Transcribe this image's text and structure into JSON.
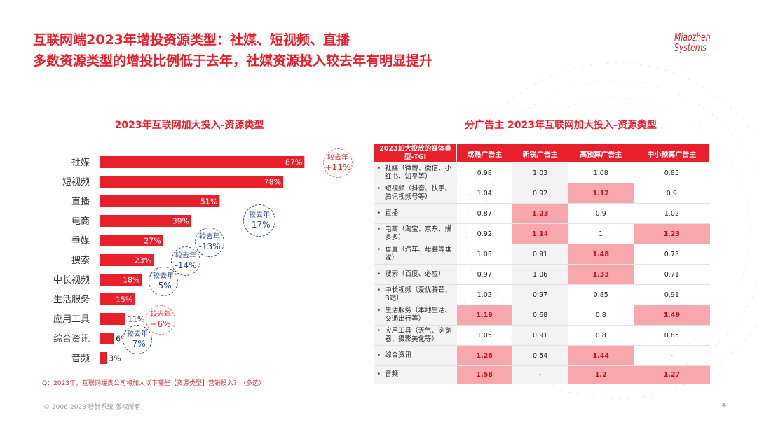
{
  "header": {
    "title_line1": "互联网端2023年增投资源类型：社媒、短视频、直播",
    "title_line2": "多数资源类型的增投比例低于去年，社媒资源投入较去年有明显提升",
    "logo_line1": "Miaozhen",
    "logo_line2": "Systems"
  },
  "colors": {
    "accent": "#e8202c",
    "bar": "#e8202c",
    "highlight": "#f8a8ac",
    "down": "#2f4a8a"
  },
  "chart_data": {
    "type": "bar",
    "orientation": "horizontal",
    "title": "2023年互联网加大投入-资源类型",
    "categories": [
      "社媒",
      "短视频",
      "直播",
      "电商",
      "垂媒",
      "搜索",
      "中长视频",
      "生活服务",
      "应用工具",
      "综合资讯",
      "音频"
    ],
    "values": [
      87,
      78,
      51,
      39,
      27,
      23,
      18,
      15,
      11,
      6,
      3
    ],
    "value_labels": [
      "87%",
      "78%",
      "51%",
      "39%",
      "27%",
      "23%",
      "18%",
      "15%",
      "11%",
      "6%",
      "3%"
    ],
    "annotations": [
      {
        "category": "社媒",
        "label": "较去年",
        "change": "+11%",
        "direction": "up"
      },
      {
        "category": "电商",
        "label": "较去年",
        "change": "-17%",
        "direction": "down"
      },
      {
        "category": "垂媒",
        "label": "较去年",
        "change": "-13%",
        "direction": "down"
      },
      {
        "category": "搜索",
        "label": "较去年",
        "change": "-14%",
        "direction": "down"
      },
      {
        "category": "中长视频",
        "label": "较去年",
        "change": "-5%",
        "direction": "down"
      },
      {
        "category": "应用工具",
        "label": "较去年",
        "change": "+6%",
        "direction": "up"
      },
      {
        "category": "综合资讯",
        "label": "较去年",
        "change": "-7%",
        "direction": "down"
      }
    ],
    "xlim": [
      0,
      100
    ]
  },
  "table": {
    "title": "分广告主  2023年互联网加大投入-资源类型",
    "headers": [
      "2023加大投放的媒体类型-TGI",
      "成熟广告主",
      "新锐广告主",
      "高预算广告主",
      "中小预算广告主"
    ],
    "rows": [
      {
        "name": "社媒（微博、微信、小红书、知乎等）",
        "values": [
          "0.98",
          "1.03",
          "1.08",
          "0.85"
        ],
        "highlight": [
          false,
          false,
          false,
          false
        ]
      },
      {
        "name": "短视频（抖音、快手、腾讯视频号等）",
        "values": [
          "1.04",
          "0.92",
          "1.12",
          "0.9"
        ],
        "highlight": [
          false,
          false,
          true,
          false
        ]
      },
      {
        "name": "直播",
        "values": [
          "0.87",
          "1.23",
          "0.9",
          "1.02"
        ],
        "highlight": [
          false,
          true,
          false,
          false
        ]
      },
      {
        "name": "电商（淘宝、京东、拼多多）",
        "values": [
          "0.92",
          "1.14",
          "1",
          "1.23"
        ],
        "highlight": [
          false,
          true,
          false,
          true
        ]
      },
      {
        "name": "垂直（汽车、母婴等垂媒）",
        "values": [
          "1.05",
          "0.91",
          "1.48",
          "0.73"
        ],
        "highlight": [
          false,
          false,
          true,
          false
        ]
      },
      {
        "name": "搜索（百度、必应）",
        "values": [
          "0.97",
          "1.06",
          "1.33",
          "0.71"
        ],
        "highlight": [
          false,
          false,
          true,
          false
        ]
      },
      {
        "name": "中长视频（爱优腾芒、B站）",
        "values": [
          "1.02",
          "0.97",
          "0.85",
          "0.91"
        ],
        "highlight": [
          false,
          false,
          false,
          false
        ]
      },
      {
        "name": "生活服务（本地生活、交通出行等）",
        "values": [
          "1.19",
          "0.68",
          "0.8",
          "1.49"
        ],
        "highlight": [
          true,
          false,
          false,
          true
        ]
      },
      {
        "name": "应用工具（天气、浏览器、摄影美化等）",
        "values": [
          "1.05",
          "0.91",
          "0.8",
          "0.85"
        ],
        "highlight": [
          false,
          false,
          false,
          false
        ]
      },
      {
        "name": "综合资讯",
        "values": [
          "1.26",
          "0.54",
          "1.44",
          "-"
        ],
        "highlight": [
          true,
          false,
          true,
          false
        ]
      },
      {
        "name": "音频",
        "values": [
          "1.58",
          "-",
          "1.2",
          "1.27"
        ],
        "highlight": [
          true,
          false,
          true,
          true
        ]
      }
    ]
  },
  "footer": {
    "question": "Q：2023年，互联网端贵公司将加大以下哪些【资源类型】营销投入？（多选）",
    "copyright": "© 2006-2023 秒针系统 版权所有",
    "page": "4"
  }
}
